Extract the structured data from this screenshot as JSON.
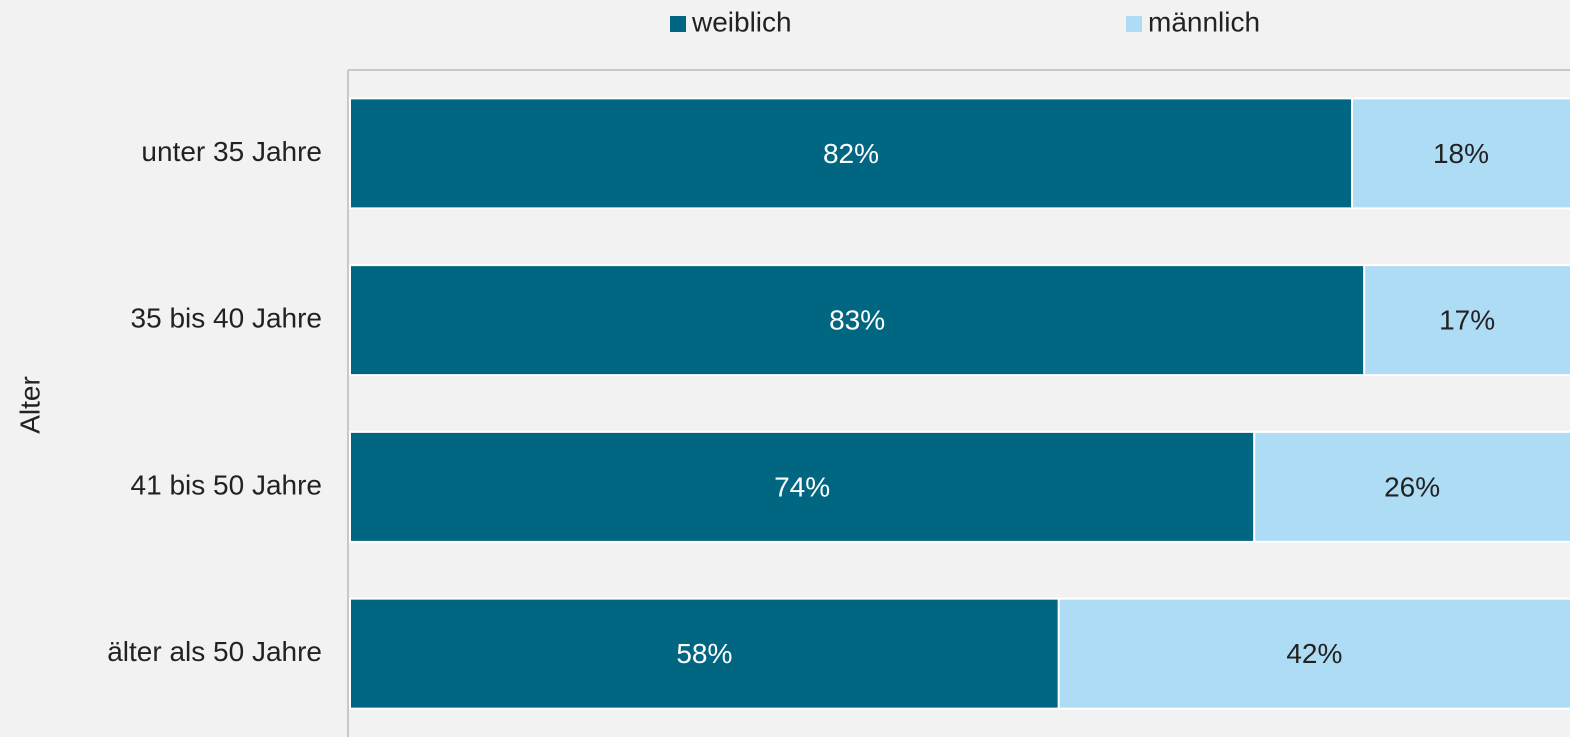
{
  "chart_data": {
    "type": "stacked_barh",
    "ylabel": "Alter",
    "categories": [
      "unter 35 Jahre",
      "35 bis 40 Jahre",
      "41 bis 50 Jahre",
      "älter als 50 Jahre"
    ],
    "series": [
      {
        "name": "weiblich",
        "color": "#006681",
        "values": [
          82,
          83,
          74,
          58
        ],
        "value_labels": [
          "82%",
          "83%",
          "74%",
          "58%"
        ]
      },
      {
        "name": "männlich",
        "color": "#afdcf5",
        "values": [
          18,
          17,
          26,
          42
        ],
        "value_labels": [
          "18%",
          "17%",
          "26%",
          "42%"
        ]
      }
    ],
    "xlim": [
      0,
      100
    ],
    "legend": "top"
  }
}
